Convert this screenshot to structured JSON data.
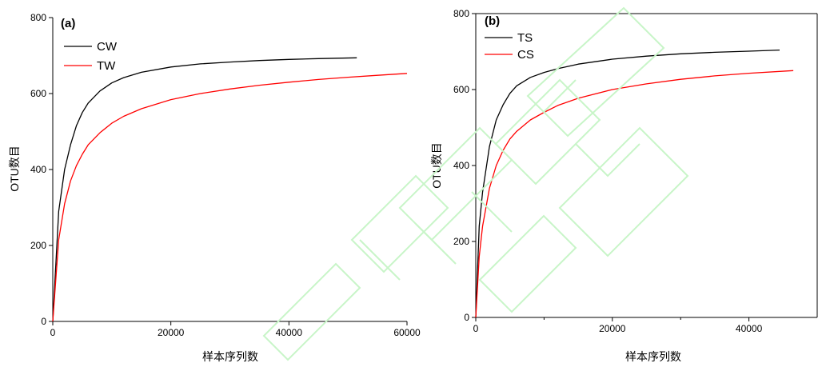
{
  "chart_data": [
    {
      "type": "line",
      "panel_label": "(a)",
      "xlabel": "样本序列数",
      "ylabel": "OTU数目",
      "xlim": [
        0,
        60000
      ],
      "ylim": [
        0,
        800
      ],
      "x_ticks": [
        0,
        20000,
        40000,
        60000
      ],
      "x_tick_labels": [
        "0",
        "20000",
        "40000",
        "60000"
      ],
      "y_ticks": [
        0,
        200,
        400,
        600,
        800
      ],
      "y_tick_labels": [
        "0",
        "200",
        "400",
        "600",
        "800"
      ],
      "grid": false,
      "legend_position": "top-left",
      "series": [
        {
          "name": "CW",
          "color": "#000000",
          "x": [
            0,
            1000,
            2000,
            3000,
            4000,
            5000,
            6000,
            8000,
            10000,
            12000,
            15000,
            20000,
            25000,
            30000,
            35000,
            40000,
            45000,
            51500
          ],
          "y": [
            0,
            290,
            400,
            465,
            515,
            550,
            575,
            607,
            628,
            642,
            656,
            670,
            678,
            683,
            687,
            690,
            692,
            694
          ]
        },
        {
          "name": "TW",
          "color": "#ff0000",
          "x": [
            0,
            1000,
            2000,
            3000,
            4000,
            5000,
            6000,
            8000,
            10000,
            12000,
            15000,
            20000,
            25000,
            30000,
            35000,
            40000,
            45000,
            50000,
            55000,
            60000
          ],
          "y": [
            0,
            215,
            310,
            370,
            410,
            440,
            465,
            497,
            522,
            540,
            560,
            584,
            600,
            612,
            622,
            630,
            637,
            643,
            648,
            653
          ]
        }
      ]
    },
    {
      "type": "line",
      "panel_label": "(b)",
      "xlabel": "样本序列数",
      "ylabel": "OTU数目",
      "xlim": [
        0,
        50000
      ],
      "ylim": [
        0,
        800
      ],
      "x_ticks": [
        0,
        20000,
        40000
      ],
      "x_tick_labels": [
        "0",
        "20000",
        "40000"
      ],
      "x_minor_ticks": [
        10000,
        30000
      ],
      "y_ticks": [
        0,
        200,
        400,
        600,
        800
      ],
      "y_tick_labels": [
        "0",
        "200",
        "400",
        "600",
        "800"
      ],
      "grid": false,
      "legend_position": "top-left",
      "series": [
        {
          "name": "TS",
          "color": "#000000",
          "x": [
            0,
            500,
            1000,
            2000,
            3000,
            4000,
            5000,
            6000,
            8000,
            10000,
            12000,
            15000,
            20000,
            25000,
            30000,
            35000,
            40000,
            44500
          ],
          "y": [
            0,
            240,
            330,
            450,
            520,
            560,
            590,
            610,
            632,
            645,
            655,
            667,
            680,
            688,
            694,
            698,
            701,
            704
          ]
        },
        {
          "name": "CS",
          "color": "#ff0000",
          "x": [
            0,
            500,
            1000,
            2000,
            3000,
            4000,
            5000,
            6000,
            8000,
            10000,
            12000,
            15000,
            20000,
            25000,
            30000,
            35000,
            40000,
            46500
          ],
          "y": [
            0,
            160,
            240,
            340,
            400,
            440,
            470,
            490,
            520,
            540,
            558,
            577,
            600,
            615,
            627,
            636,
            643,
            650
          ]
        }
      ]
    }
  ]
}
